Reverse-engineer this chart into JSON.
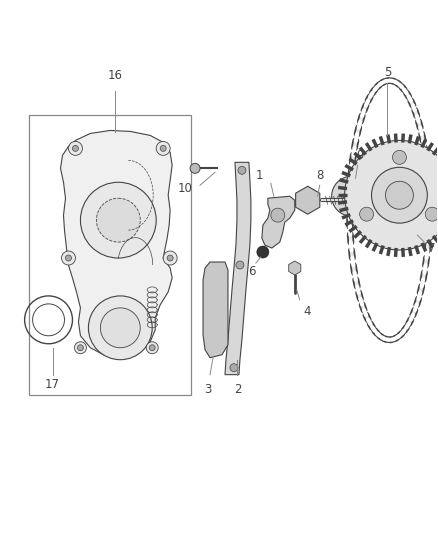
{
  "bg_color": "#ffffff",
  "line_color": "#444444",
  "gray_light": "#cccccc",
  "gray_mid": "#999999",
  "gray_dark": "#555555",
  "figure_width": 4.38,
  "figure_height": 5.33,
  "dpi": 100,
  "label_fontsize": 8.5,
  "label_color": "#444444"
}
